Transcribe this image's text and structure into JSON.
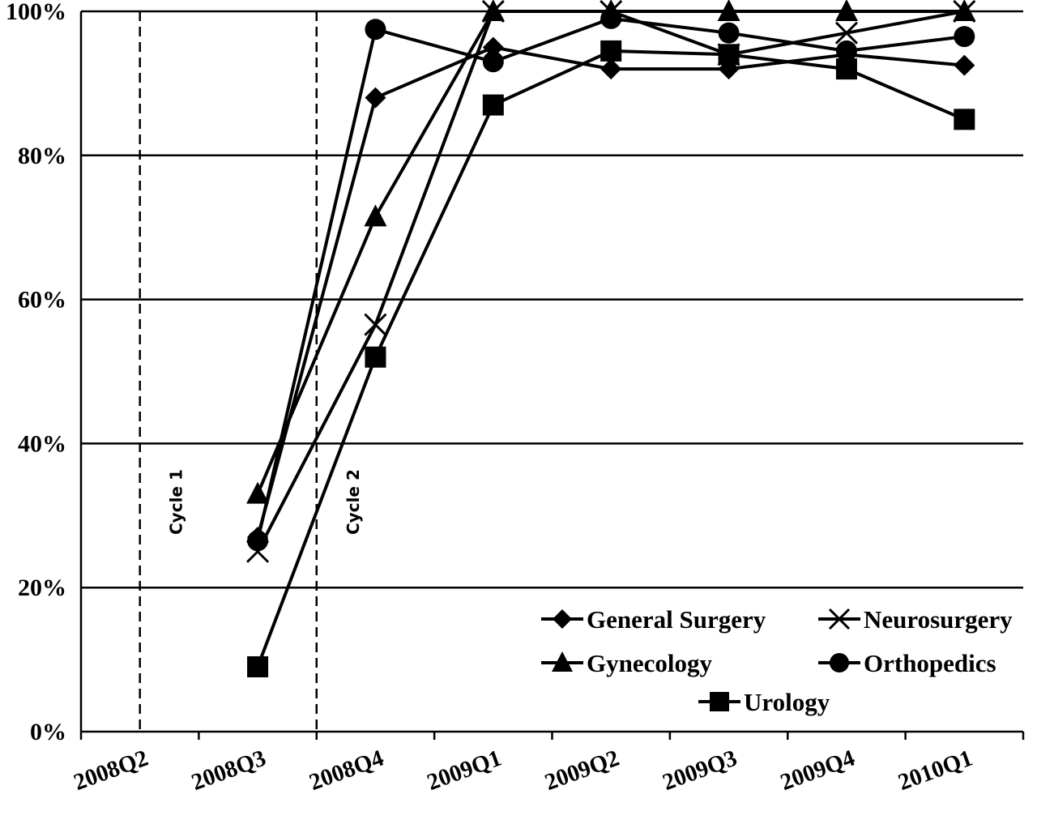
{
  "chart_data": {
    "type": "line",
    "title": "",
    "xlabel": "",
    "ylabel": "",
    "categories": [
      "2008Q2",
      "2008Q3",
      "2008Q4",
      "2009Q1",
      "2009Q2",
      "2009Q3",
      "2009Q4",
      "2010Q1"
    ],
    "ylim": [
      0,
      100
    ],
    "yticks": [
      "0%",
      "20%",
      "40%",
      "60%",
      "80%",
      "100%"
    ],
    "grid": "horizontal",
    "legend_position": "bottom-right",
    "series": [
      {
        "name": "General Surgery",
        "marker": "diamond",
        "values": [
          null,
          27,
          88,
          95,
          92,
          92,
          94,
          92.5
        ]
      },
      {
        "name": "Neurosurgery",
        "marker": "x",
        "values": [
          null,
          25,
          56.5,
          100,
          100,
          94,
          97,
          100
        ]
      },
      {
        "name": "Gynecology",
        "marker": "triangle",
        "values": [
          null,
          33,
          71.5,
          100,
          100,
          100,
          100,
          100
        ]
      },
      {
        "name": "Orthopedics",
        "marker": "circle",
        "values": [
          null,
          26.5,
          97.5,
          93,
          99,
          97,
          94.5,
          96.5
        ]
      },
      {
        "name": "Urology",
        "marker": "square",
        "values": [
          null,
          9,
          52,
          87,
          94.5,
          94,
          92,
          85
        ]
      }
    ],
    "annotations": [
      {
        "label": "Cycle 1",
        "category_position": 0.5
      },
      {
        "label": "Cycle 2",
        "category_position": 2.0
      }
    ],
    "line_color": "#000000"
  }
}
